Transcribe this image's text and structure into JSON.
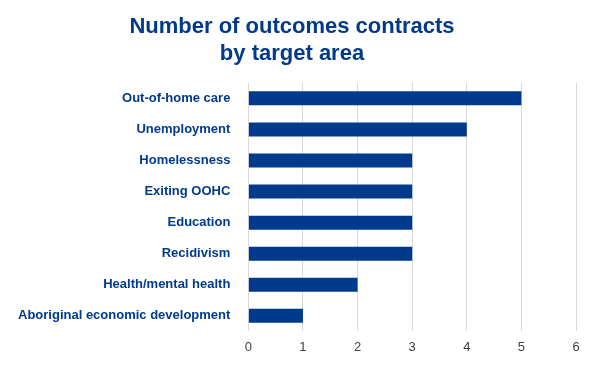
{
  "chart_data": {
    "type": "bar",
    "orientation": "horizontal",
    "title": [
      "Number of outcomes contracts",
      "by target area"
    ],
    "categories": [
      "Out-of-home care",
      "Unemployment",
      "Homelessness",
      "Exiting OOHC",
      "Education",
      "Recidivism",
      "Health/mental health",
      "Aboriginal economic development"
    ],
    "values": [
      5,
      4,
      3,
      3,
      3,
      3,
      2,
      1
    ],
    "color": "#003a8c",
    "xlim": [
      0,
      6
    ],
    "xticks": [
      0,
      1,
      2,
      3,
      4,
      5,
      6
    ],
    "grid": true
  }
}
